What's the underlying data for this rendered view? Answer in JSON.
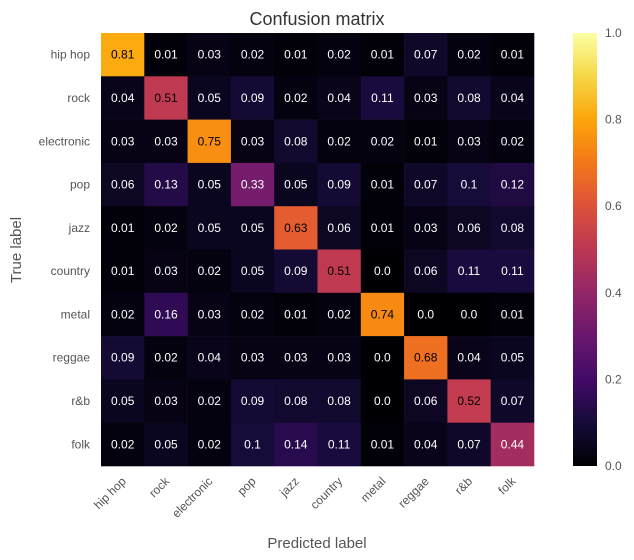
{
  "chart_data": {
    "type": "heatmap",
    "title": "Confusion matrix",
    "xlabel": "Predicted label",
    "ylabel": "True label",
    "row_labels": [
      "hip hop",
      "rock",
      "electronic",
      "pop",
      "jazz",
      "country",
      "metal",
      "reggae",
      "r&b",
      "folk"
    ],
    "col_labels": [
      "hip hop",
      "rock",
      "electronic",
      "pop",
      "jazz",
      "country",
      "metal",
      "reggae",
      "r&b",
      "folk"
    ],
    "values": [
      [
        0.81,
        0.01,
        0.03,
        0.02,
        0.01,
        0.02,
        0.01,
        0.07,
        0.02,
        0.01
      ],
      [
        0.04,
        0.51,
        0.05,
        0.09,
        0.02,
        0.04,
        0.11,
        0.03,
        0.08,
        0.04
      ],
      [
        0.03,
        0.03,
        0.75,
        0.03,
        0.08,
        0.02,
        0.02,
        0.01,
        0.03,
        0.02
      ],
      [
        0.06,
        0.13,
        0.05,
        0.33,
        0.05,
        0.09,
        0.01,
        0.07,
        0.1,
        0.12
      ],
      [
        0.01,
        0.02,
        0.05,
        0.05,
        0.63,
        0.06,
        0.01,
        0.03,
        0.06,
        0.08
      ],
      [
        0.01,
        0.03,
        0.02,
        0.05,
        0.09,
        0.51,
        0.0,
        0.06,
        0.11,
        0.11
      ],
      [
        0.02,
        0.16,
        0.03,
        0.02,
        0.01,
        0.02,
        0.74,
        0.0,
        0.0,
        0.01
      ],
      [
        0.09,
        0.02,
        0.04,
        0.03,
        0.03,
        0.03,
        0.0,
        0.68,
        0.04,
        0.05
      ],
      [
        0.05,
        0.03,
        0.02,
        0.09,
        0.08,
        0.08,
        0.0,
        0.06,
        0.52,
        0.07
      ],
      [
        0.02,
        0.05,
        0.02,
        0.1,
        0.14,
        0.11,
        0.01,
        0.04,
        0.07,
        0.44
      ]
    ],
    "value_labels": [
      [
        "0.81",
        "0.01",
        "0.03",
        "0.02",
        "0.01",
        "0.02",
        "0.01",
        "0.07",
        "0.02",
        "0.01"
      ],
      [
        "0.04",
        "0.51",
        "0.05",
        "0.09",
        "0.02",
        "0.04",
        "0.11",
        "0.03",
        "0.08",
        "0.04"
      ],
      [
        "0.03",
        "0.03",
        "0.75",
        "0.03",
        "0.08",
        "0.02",
        "0.02",
        "0.01",
        "0.03",
        "0.02"
      ],
      [
        "0.06",
        "0.13",
        "0.05",
        "0.33",
        "0.05",
        "0.09",
        "0.01",
        "0.07",
        "0.1",
        "0.12"
      ],
      [
        "0.01",
        "0.02",
        "0.05",
        "0.05",
        "0.63",
        "0.06",
        "0.01",
        "0.03",
        "0.06",
        "0.08"
      ],
      [
        "0.01",
        "0.03",
        "0.02",
        "0.05",
        "0.09",
        "0.51",
        "0.0",
        "0.06",
        "0.11",
        "0.11"
      ],
      [
        "0.02",
        "0.16",
        "0.03",
        "0.02",
        "0.01",
        "0.02",
        "0.74",
        "0.0",
        "0.0",
        "0.01"
      ],
      [
        "0.09",
        "0.02",
        "0.04",
        "0.03",
        "0.03",
        "0.03",
        "0.0",
        "0.68",
        "0.04",
        "0.05"
      ],
      [
        "0.05",
        "0.03",
        "0.02",
        "0.09",
        "0.08",
        "0.08",
        "0.0",
        "0.06",
        "0.52",
        "0.07"
      ],
      [
        "0.02",
        "0.05",
        "0.02",
        "0.1",
        "0.14",
        "0.11",
        "0.01",
        "0.04",
        "0.07",
        "0.44"
      ]
    ],
    "colormap": "inferno",
    "vmin": 0.0,
    "vmax": 1.0,
    "colorbar_ticks": [
      "0.0",
      "0.2",
      "0.4",
      "0.6",
      "0.8",
      "1.0"
    ],
    "grid": false
  }
}
